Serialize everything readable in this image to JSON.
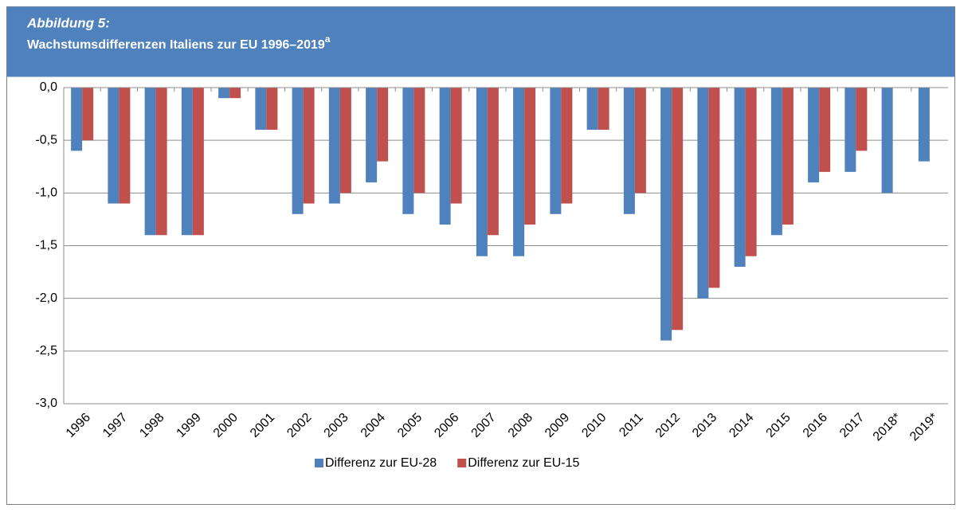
{
  "chart_data": {
    "type": "bar",
    "label": "Abbildung 5:",
    "title": "Wachstumsdifferenzen Italiens zur EU 1996–2019",
    "title_superscript": "a",
    "categories": [
      "1996",
      "1997",
      "1998",
      "1999",
      "2000",
      "2001",
      "2002",
      "2003",
      "2004",
      "2005",
      "2006",
      "2007",
      "2008",
      "2009",
      "2010",
      "2011",
      "2012",
      "2013",
      "2014",
      "2015",
      "2016",
      "2017",
      "2018*",
      "2019*"
    ],
    "series": [
      {
        "name": "Differenz zur EU-28",
        "color": "#4f81bd",
        "values": [
          -0.6,
          -1.1,
          -1.4,
          -1.4,
          -0.1,
          -0.4,
          -1.2,
          -1.1,
          -0.9,
          -1.2,
          -1.3,
          -1.6,
          -1.6,
          -1.2,
          -0.4,
          -1.2,
          -2.4,
          -2.0,
          -1.7,
          -1.4,
          -0.9,
          -0.8,
          -1.0,
          -0.7
        ]
      },
      {
        "name": "Differenz zur EU-15",
        "color": "#c0504d",
        "values": [
          -0.5,
          -1.1,
          -1.4,
          -1.4,
          -0.1,
          -0.4,
          -1.1,
          -1.0,
          -0.7,
          -1.0,
          -1.1,
          -1.4,
          -1.3,
          -1.1,
          -0.4,
          -1.0,
          -2.3,
          -1.9,
          -1.6,
          -1.3,
          -0.8,
          -0.6,
          null,
          null
        ]
      }
    ],
    "ylim": [
      -3,
      0
    ],
    "yticks": [
      {
        "value": 0,
        "label": "0,0"
      },
      {
        "value": -0.5,
        "label": "-0,5"
      },
      {
        "value": -1,
        "label": "-1,0"
      },
      {
        "value": -1.5,
        "label": "-1,5"
      },
      {
        "value": -2,
        "label": "-2,0"
      },
      {
        "value": -2.5,
        "label": "-2,5"
      },
      {
        "value": -3,
        "label": "-3,0"
      }
    ],
    "grid": true,
    "legend": "bottom"
  }
}
